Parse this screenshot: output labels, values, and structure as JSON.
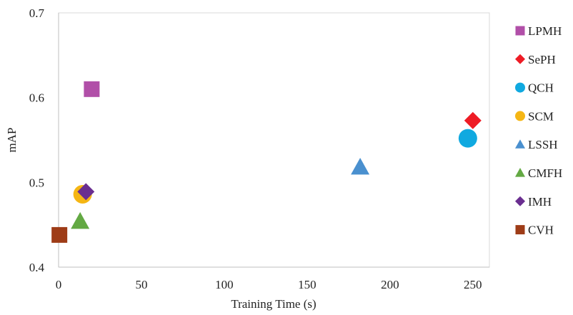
{
  "chart_data": {
    "type": "scatter",
    "xlabel": "Training Time (s)",
    "ylabel": "mAP",
    "xlim": [
      0,
      260
    ],
    "ylim": [
      0.4,
      0.7
    ],
    "xticks": [
      "0",
      "50",
      "100",
      "150",
      "200",
      "250"
    ],
    "yticks": [
      "0.4",
      "0.5",
      "0.6",
      "0.7"
    ],
    "grid": false,
    "legend_position": "right",
    "series": [
      {
        "name": "LPMH",
        "marker": "square",
        "color": "#B14FA8",
        "x": 20,
        "y": 0.61
      },
      {
        "name": "SePH",
        "marker": "diamond",
        "color": "#EE1C25",
        "x": 250,
        "y": 0.573
      },
      {
        "name": "QCH",
        "marker": "circle",
        "color": "#10A9E0",
        "x": 247,
        "y": 0.552
      },
      {
        "name": "SCM",
        "marker": "circle",
        "color": "#F5B614",
        "x": 14.5,
        "y": 0.486
      },
      {
        "name": "LSSH",
        "marker": "triangle",
        "color": "#4A90CF",
        "x": 182,
        "y": 0.518
      },
      {
        "name": "CMFH",
        "marker": "triangle",
        "color": "#63A943",
        "x": 13,
        "y": 0.454
      },
      {
        "name": "IMH",
        "marker": "diamond",
        "color": "#6A2E90",
        "x": 16.5,
        "y": 0.489
      },
      {
        "name": "CVH",
        "marker": "square",
        "color": "#9E3C17",
        "x": 0.5,
        "y": 0.438
      }
    ]
  }
}
